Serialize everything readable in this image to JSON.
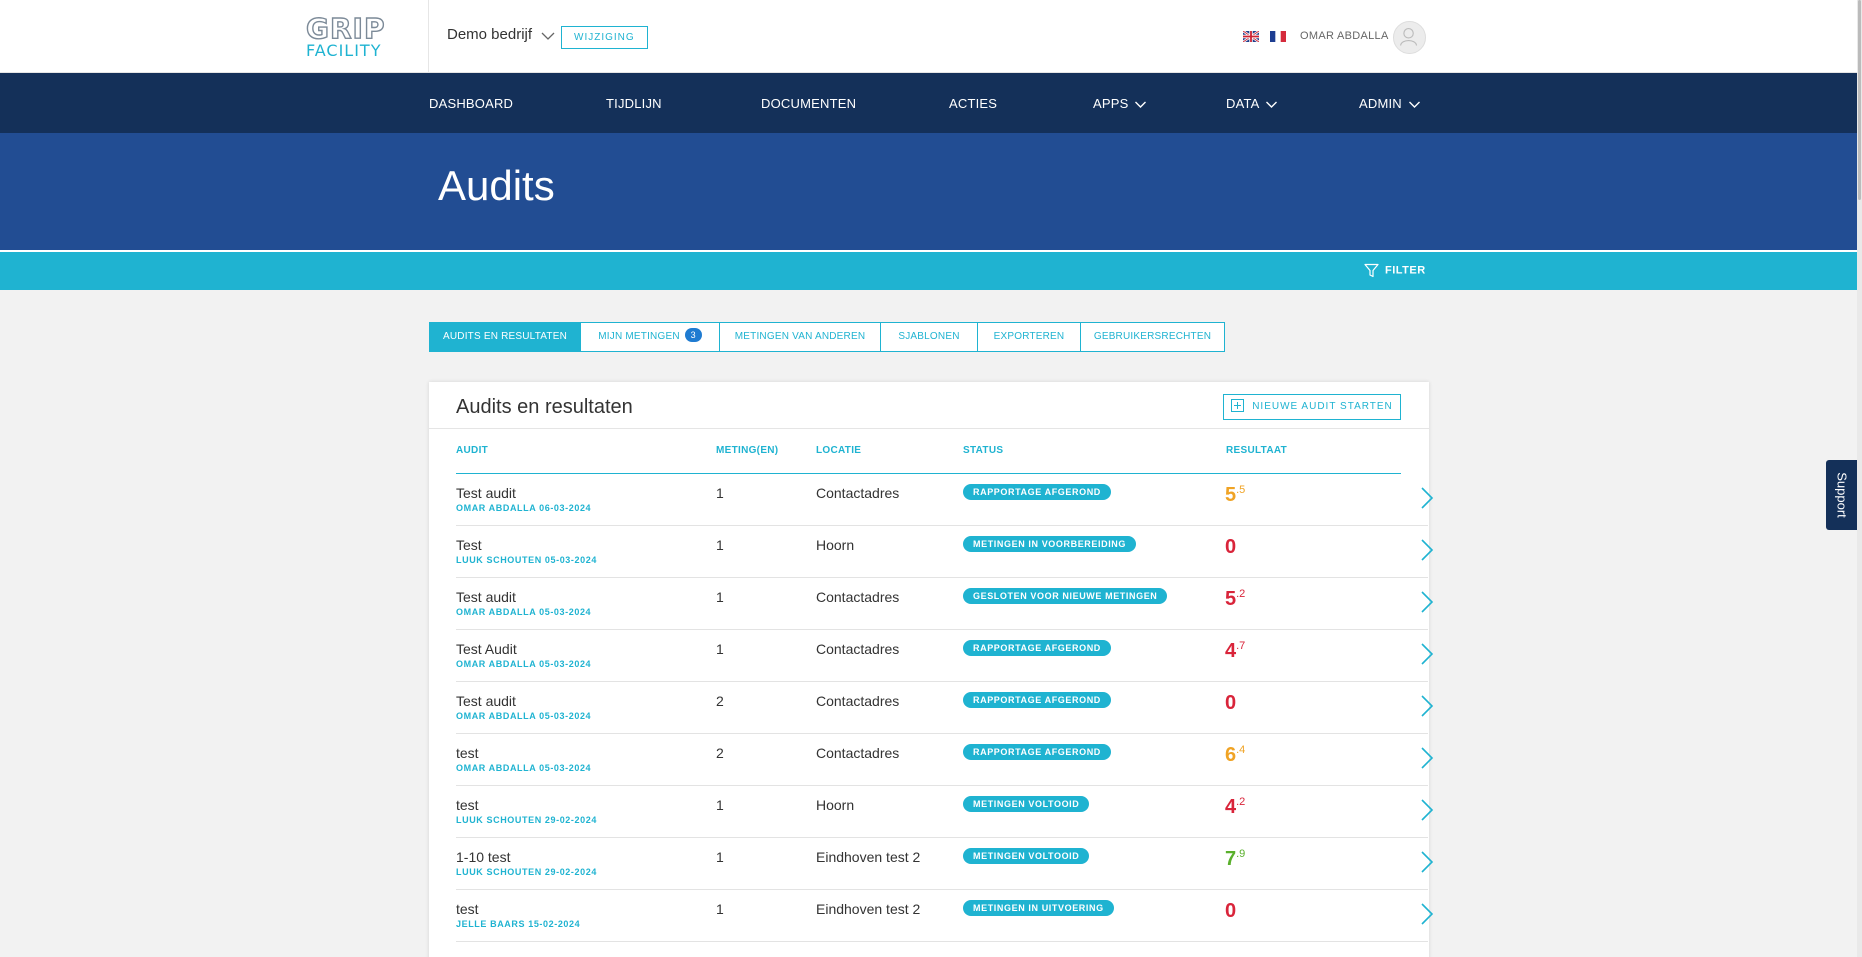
{
  "header": {
    "logo_top": "GRIP",
    "logo_bottom": "FACILITY",
    "company": "Demo bedrijf",
    "change_label": "WIJZIGING",
    "user_name": "OMAR ABDALLA"
  },
  "nav": {
    "items": [
      {
        "label": "DASHBOARD"
      },
      {
        "label": "TIJDLIJN"
      },
      {
        "label": "DOCUMENTEN"
      },
      {
        "label": "ACTIES"
      },
      {
        "label": "APPS"
      },
      {
        "label": "DATA"
      },
      {
        "label": "ADMIN"
      }
    ]
  },
  "page": {
    "title": "Audits",
    "filter_label": "FILTER"
  },
  "tabs": [
    {
      "label": "AUDITS EN RESULTATEN"
    },
    {
      "label": "MIJN METINGEN",
      "badge": "3"
    },
    {
      "label": "METINGEN VAN ANDEREN"
    },
    {
      "label": "SJABLONEN"
    },
    {
      "label": "EXPORTEREN"
    },
    {
      "label": "GEBRUIKERSRECHTEN"
    }
  ],
  "card": {
    "title": "Audits en resultaten",
    "new_button": "NIEUWE AUDIT STARTEN"
  },
  "table": {
    "headers": {
      "audit": "AUDIT",
      "count": "METING(EN)",
      "location": "LOCATIE",
      "status": "STATUS",
      "result": "RESULTAAT"
    },
    "rows": [
      {
        "name": "Test audit",
        "sub": "OMAR ABDALLA 06-03-2024",
        "count": "1",
        "location": "Contactadres",
        "status": "RAPPORTAGE AFGEROND",
        "result_int": "5",
        "result_dec": ".5",
        "result_color": "#f0a324"
      },
      {
        "name": "Test",
        "sub": "LUUK SCHOUTEN 05-03-2024",
        "count": "1",
        "location": "Hoorn",
        "status": "METINGEN IN VOORBEREIDING",
        "result_int": "0",
        "result_dec": "",
        "result_color": "#d9243a"
      },
      {
        "name": "Test audit",
        "sub": "OMAR ABDALLA 05-03-2024",
        "count": "1",
        "location": "Contactadres",
        "status": "GESLOTEN VOOR NIEUWE METINGEN",
        "result_int": "5",
        "result_dec": ".2",
        "result_color": "#d9243a"
      },
      {
        "name": "Test Audit",
        "sub": "OMAR ABDALLA 05-03-2024",
        "count": "1",
        "location": "Contactadres",
        "status": "RAPPORTAGE AFGEROND",
        "result_int": "4",
        "result_dec": ".7",
        "result_color": "#d9243a"
      },
      {
        "name": "Test audit",
        "sub": "OMAR ABDALLA 05-03-2024",
        "count": "2",
        "location": "Contactadres",
        "status": "RAPPORTAGE AFGEROND",
        "result_int": "0",
        "result_dec": "",
        "result_color": "#d9243a"
      },
      {
        "name": "test",
        "sub": "OMAR ABDALLA 05-03-2024",
        "count": "2",
        "location": "Contactadres",
        "status": "RAPPORTAGE AFGEROND",
        "result_int": "6",
        "result_dec": ".4",
        "result_color": "#f0a324"
      },
      {
        "name": "test",
        "sub": "LUUK SCHOUTEN 29-02-2024",
        "count": "1",
        "location": "Hoorn",
        "status": "METINGEN VOLTOOID",
        "result_int": "4",
        "result_dec": ".2",
        "result_color": "#d9243a"
      },
      {
        "name": "1-10 test",
        "sub": "LUUK SCHOUTEN 29-02-2024",
        "count": "1",
        "location": "Eindhoven test 2",
        "status": "METINGEN VOLTOOID",
        "result_int": "7",
        "result_dec": ".9",
        "result_color": "#5ab02c"
      },
      {
        "name": "test",
        "sub": "JELLE BAARS 15-02-2024",
        "count": "1",
        "location": "Eindhoven test 2",
        "status": "METINGEN IN UITVOERING",
        "result_int": "0",
        "result_dec": "",
        "result_color": "#d9243a"
      }
    ]
  },
  "support_label": "Support",
  "icons": {
    "company_dropdown": "chevron-down-icon",
    "filter": "filter-icon",
    "new_audit": "plus-square-icon",
    "row_open": "chevron-right-icon",
    "avatar": "user-icon",
    "flag_en": "flag-uk-icon",
    "flag_fr": "flag-fr-icon"
  },
  "colors": {
    "nav_bg": "#143059",
    "banner_bg": "#224d93",
    "accent": "#1fb3d1",
    "result_red": "#d9243a",
    "result_orange": "#f0a324",
    "result_green": "#5ab02c"
  }
}
